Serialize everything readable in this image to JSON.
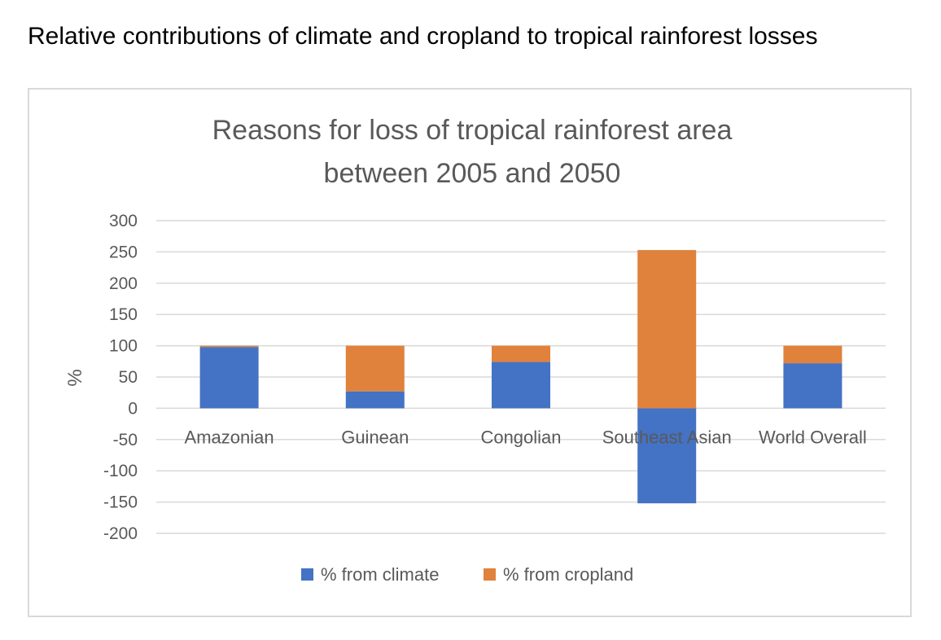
{
  "page": {
    "heading": "Relative contributions of climate and cropland to tropical rainforest losses"
  },
  "colors": {
    "climate": "#4472C4",
    "cropland": "#E0823C",
    "grid": "#d9d9d9",
    "text": "#595959"
  },
  "chart_data": {
    "type": "bar",
    "stacked": true,
    "title_lines": [
      "Reasons for loss of tropical rainforest area",
      "between 2005 and 2050"
    ],
    "ylabel": "%",
    "xlabel": "",
    "ylim": [
      -200,
      300
    ],
    "yticks": [
      300,
      250,
      200,
      150,
      100,
      50,
      0,
      -50,
      -100,
      -150,
      -200
    ],
    "categories": [
      "Amazonian",
      "Guinean",
      "Congolian",
      "Southeast Asian",
      "World Overall"
    ],
    "series": [
      {
        "name": "% from climate",
        "values": [
          98,
          27,
          74,
          -152,
          72
        ]
      },
      {
        "name": "% from cropland",
        "values": [
          2,
          73,
          26,
          253,
          28
        ]
      }
    ],
    "grid": true,
    "legend_position": "bottom"
  }
}
